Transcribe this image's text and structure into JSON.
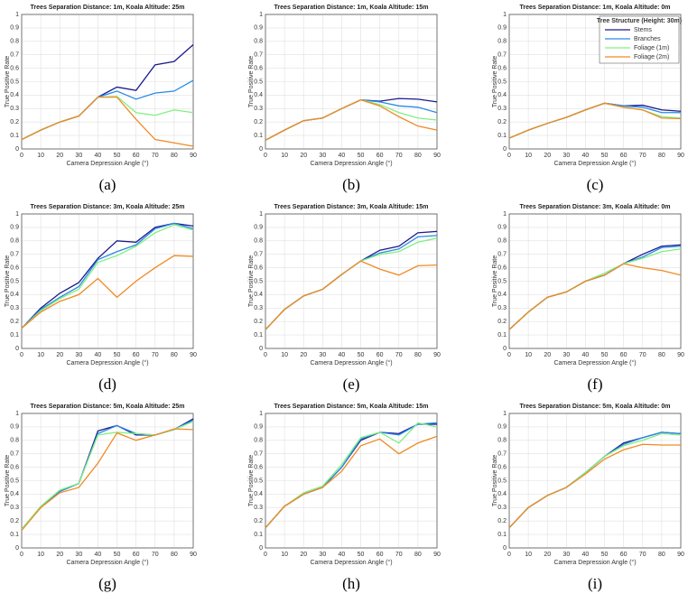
{
  "chart_data": [
    {
      "type": "line",
      "title": "Trees Separation Distance: 1m, Koala Altitude: 25m",
      "caption": "(a)",
      "xlabel": "Camera Depression Angle (°)",
      "ylabel": "True Positive Rate",
      "x": [
        0,
        10,
        20,
        30,
        40,
        50,
        60,
        70,
        80,
        90
      ],
      "xlim": [
        0,
        90
      ],
      "ylim": [
        0,
        1
      ],
      "xticks": [
        0,
        10,
        20,
        30,
        40,
        50,
        60,
        70,
        80,
        90
      ],
      "yticks": [
        0,
        0.1,
        0.2,
        0.3,
        0.4,
        0.5,
        0.6,
        0.7,
        0.8,
        0.9,
        1
      ],
      "grid": true,
      "series": [
        {
          "color": "#1a1a8c",
          "values": [
            0.07,
            0.14,
            0.2,
            0.245,
            0.385,
            0.46,
            0.435,
            0.625,
            0.65,
            0.775
          ]
        },
        {
          "color": "#2a8ae6",
          "values": [
            0.07,
            0.14,
            0.2,
            0.245,
            0.385,
            0.43,
            0.37,
            0.415,
            0.43,
            0.51
          ]
        },
        {
          "color": "#80f080",
          "values": [
            0.07,
            0.14,
            0.2,
            0.245,
            0.385,
            0.39,
            0.27,
            0.25,
            0.29,
            0.27
          ]
        },
        {
          "color": "#f08a24",
          "values": [
            0.07,
            0.14,
            0.2,
            0.245,
            0.385,
            0.385,
            0.22,
            0.07,
            0.045,
            0.02
          ]
        }
      ]
    },
    {
      "type": "line",
      "title": "Trees Separation Distance: 1m, Koala Altitude: 15m",
      "caption": "(b)",
      "xlabel": "Camera Depression Angle (°)",
      "ylabel": "True Positive Rate",
      "x": [
        0,
        10,
        20,
        30,
        40,
        50,
        60,
        70,
        80,
        90
      ],
      "xlim": [
        0,
        90
      ],
      "ylim": [
        0,
        1
      ],
      "xticks": [
        0,
        10,
        20,
        30,
        40,
        50,
        60,
        70,
        80,
        90
      ],
      "yticks": [
        0,
        0.1,
        0.2,
        0.3,
        0.4,
        0.5,
        0.6,
        0.7,
        0.8,
        0.9,
        1
      ],
      "grid": true,
      "series": [
        {
          "color": "#1a1a8c",
          "values": [
            0.065,
            0.14,
            0.21,
            0.23,
            0.3,
            0.365,
            0.355,
            0.375,
            0.37,
            0.35
          ]
        },
        {
          "color": "#2a8ae6",
          "values": [
            0.065,
            0.14,
            0.21,
            0.23,
            0.3,
            0.365,
            0.35,
            0.32,
            0.31,
            0.27
          ]
        },
        {
          "color": "#80f080",
          "values": [
            0.065,
            0.14,
            0.21,
            0.23,
            0.3,
            0.365,
            0.33,
            0.27,
            0.23,
            0.215
          ]
        },
        {
          "color": "#f08a24",
          "values": [
            0.065,
            0.14,
            0.21,
            0.23,
            0.3,
            0.365,
            0.32,
            0.24,
            0.17,
            0.14
          ]
        }
      ]
    },
    {
      "type": "line",
      "title": "Trees Separation Distance: 1m, Koala Altitude: 0m",
      "caption": "(c)",
      "xlabel": "Camera Depression Angle (°)",
      "ylabel": "True Positive Rate",
      "x": [
        0,
        10,
        20,
        30,
        40,
        50,
        60,
        70,
        80,
        90
      ],
      "xlim": [
        0,
        90
      ],
      "ylim": [
        0,
        1
      ],
      "xticks": [
        0,
        10,
        20,
        30,
        40,
        50,
        60,
        70,
        80,
        90
      ],
      "yticks": [
        0,
        0.1,
        0.2,
        0.3,
        0.4,
        0.5,
        0.6,
        0.7,
        0.8,
        0.9,
        1
      ],
      "grid": true,
      "legend": "upper right",
      "legend_title": "Tree Structure (Height: 30m)",
      "series": [
        {
          "name": "Stems",
          "color": "#1a1a8c",
          "values": [
            0.08,
            0.14,
            0.19,
            0.235,
            0.29,
            0.34,
            0.32,
            0.325,
            0.29,
            0.28
          ]
        },
        {
          "name": "Branches",
          "color": "#2a8ae6",
          "values": [
            0.08,
            0.14,
            0.19,
            0.235,
            0.29,
            0.34,
            0.32,
            0.31,
            0.27,
            0.27
          ]
        },
        {
          "name": "Foliage (1m)",
          "color": "#80f080",
          "values": [
            0.08,
            0.14,
            0.19,
            0.235,
            0.29,
            0.34,
            0.31,
            0.29,
            0.24,
            0.23
          ]
        },
        {
          "name": "Foliage (2m)",
          "color": "#f08a24",
          "values": [
            0.08,
            0.14,
            0.19,
            0.235,
            0.29,
            0.34,
            0.31,
            0.29,
            0.23,
            0.225
          ]
        }
      ]
    },
    {
      "type": "line",
      "title": "Trees Separation Distance: 3m, Koala Altitude: 25m",
      "caption": "(d)",
      "xlabel": "Camera Depression Angle (°)",
      "ylabel": "True Positive Rate",
      "x": [
        0,
        10,
        20,
        30,
        40,
        50,
        60,
        70,
        80,
        90
      ],
      "xlim": [
        0,
        90
      ],
      "ylim": [
        0,
        1
      ],
      "xticks": [
        0,
        10,
        20,
        30,
        40,
        50,
        60,
        70,
        80,
        90
      ],
      "yticks": [
        0,
        0.1,
        0.2,
        0.3,
        0.4,
        0.5,
        0.6,
        0.7,
        0.8,
        0.9,
        1
      ],
      "grid": true,
      "series": [
        {
          "color": "#1a1a8c",
          "values": [
            0.15,
            0.3,
            0.41,
            0.49,
            0.67,
            0.8,
            0.79,
            0.9,
            0.93,
            0.91
          ]
        },
        {
          "color": "#2a8ae6",
          "values": [
            0.15,
            0.29,
            0.38,
            0.46,
            0.66,
            0.72,
            0.77,
            0.89,
            0.93,
            0.89
          ]
        },
        {
          "color": "#80f080",
          "values": [
            0.15,
            0.28,
            0.37,
            0.44,
            0.64,
            0.69,
            0.76,
            0.86,
            0.92,
            0.88
          ]
        },
        {
          "color": "#f08a24",
          "values": [
            0.15,
            0.27,
            0.35,
            0.4,
            0.52,
            0.38,
            0.5,
            0.6,
            0.69,
            0.685
          ]
        }
      ]
    },
    {
      "type": "line",
      "title": "Trees Separation Distance: 3m, Koala Altitude: 15m",
      "caption": "(e)",
      "xlabel": "Camera Depression Angle (°)",
      "ylabel": "True Positive Rate",
      "x": [
        0,
        10,
        20,
        30,
        40,
        50,
        60,
        70,
        80,
        90
      ],
      "xlim": [
        0,
        90
      ],
      "ylim": [
        0,
        1
      ],
      "xticks": [
        0,
        10,
        20,
        30,
        40,
        50,
        60,
        70,
        80,
        90
      ],
      "yticks": [
        0,
        0.1,
        0.2,
        0.3,
        0.4,
        0.5,
        0.6,
        0.7,
        0.8,
        0.9,
        1
      ],
      "grid": true,
      "series": [
        {
          "color": "#1a1a8c",
          "values": [
            0.14,
            0.29,
            0.39,
            0.44,
            0.55,
            0.65,
            0.73,
            0.76,
            0.86,
            0.87
          ]
        },
        {
          "color": "#2a8ae6",
          "values": [
            0.14,
            0.29,
            0.39,
            0.44,
            0.55,
            0.65,
            0.71,
            0.74,
            0.83,
            0.84
          ]
        },
        {
          "color": "#80f080",
          "values": [
            0.14,
            0.29,
            0.39,
            0.44,
            0.55,
            0.65,
            0.7,
            0.72,
            0.79,
            0.82
          ]
        },
        {
          "color": "#f08a24",
          "values": [
            0.14,
            0.29,
            0.39,
            0.44,
            0.55,
            0.65,
            0.59,
            0.545,
            0.615,
            0.62
          ]
        }
      ]
    },
    {
      "type": "line",
      "title": "Trees Separation Distance: 3m, Koala Altitude: 0m",
      "caption": "(f)",
      "xlabel": "Camera Depression Angle (°)",
      "ylabel": "True Positive Rate",
      "x": [
        0,
        10,
        20,
        30,
        40,
        50,
        60,
        70,
        80,
        90
      ],
      "xlim": [
        0,
        90
      ],
      "ylim": [
        0,
        1
      ],
      "xticks": [
        0,
        10,
        20,
        30,
        40,
        50,
        60,
        70,
        80,
        90
      ],
      "yticks": [
        0,
        0.1,
        0.2,
        0.3,
        0.4,
        0.5,
        0.6,
        0.7,
        0.8,
        0.9,
        1
      ],
      "grid": true,
      "series": [
        {
          "color": "#1a1a8c",
          "values": [
            0.14,
            0.27,
            0.38,
            0.42,
            0.5,
            0.545,
            0.63,
            0.7,
            0.76,
            0.77
          ]
        },
        {
          "color": "#2a8ae6",
          "values": [
            0.14,
            0.27,
            0.38,
            0.42,
            0.5,
            0.545,
            0.63,
            0.68,
            0.75,
            0.76
          ]
        },
        {
          "color": "#80f080",
          "values": [
            0.14,
            0.27,
            0.38,
            0.42,
            0.5,
            0.56,
            0.63,
            0.67,
            0.72,
            0.74
          ]
        },
        {
          "color": "#f08a24",
          "values": [
            0.14,
            0.27,
            0.38,
            0.42,
            0.5,
            0.545,
            0.63,
            0.6,
            0.58,
            0.545
          ]
        }
      ]
    },
    {
      "type": "line",
      "title": "Trees Separation Distance: 5m, Koala Altitude: 25m",
      "caption": "(g)",
      "xlabel": "Camera Depression Angle (°)",
      "ylabel": "True Positive Rate",
      "x": [
        0,
        10,
        20,
        30,
        40,
        50,
        60,
        70,
        80,
        90
      ],
      "xlim": [
        0,
        90
      ],
      "ylim": [
        0,
        1
      ],
      "xticks": [
        0,
        10,
        20,
        30,
        40,
        50,
        60,
        70,
        80,
        90
      ],
      "yticks": [
        0,
        0.1,
        0.2,
        0.3,
        0.4,
        0.5,
        0.6,
        0.7,
        0.8,
        0.9,
        1
      ],
      "grid": true,
      "series": [
        {
          "color": "#1a1a8c",
          "values": [
            0.14,
            0.3,
            0.42,
            0.48,
            0.87,
            0.91,
            0.84,
            0.84,
            0.88,
            0.96
          ]
        },
        {
          "color": "#2a8ae6",
          "values": [
            0.14,
            0.3,
            0.42,
            0.48,
            0.85,
            0.91,
            0.85,
            0.84,
            0.88,
            0.95
          ]
        },
        {
          "color": "#80f080",
          "values": [
            0.14,
            0.31,
            0.43,
            0.48,
            0.84,
            0.86,
            0.85,
            0.84,
            0.88,
            0.94
          ]
        },
        {
          "color": "#f08a24",
          "values": [
            0.13,
            0.3,
            0.41,
            0.45,
            0.63,
            0.855,
            0.8,
            0.84,
            0.885,
            0.88
          ]
        }
      ]
    },
    {
      "type": "line",
      "title": "Trees Separation Distance: 5m, Koala Altitude: 15m",
      "caption": "(h)",
      "xlabel": "Camera Depression Angle (°)",
      "ylabel": "True Positive Rate",
      "x": [
        0,
        10,
        20,
        30,
        40,
        50,
        60,
        70,
        80,
        90
      ],
      "xlim": [
        0,
        90
      ],
      "ylim": [
        0,
        1
      ],
      "xticks": [
        0,
        10,
        20,
        30,
        40,
        50,
        60,
        70,
        80,
        90
      ],
      "yticks": [
        0,
        0.1,
        0.2,
        0.3,
        0.4,
        0.5,
        0.6,
        0.7,
        0.8,
        0.9,
        1
      ],
      "grid": true,
      "series": [
        {
          "color": "#1a1a8c",
          "values": [
            0.15,
            0.31,
            0.4,
            0.45,
            0.6,
            0.8,
            0.86,
            0.85,
            0.92,
            0.92
          ]
        },
        {
          "color": "#2a8ae6",
          "values": [
            0.15,
            0.31,
            0.4,
            0.45,
            0.6,
            0.81,
            0.86,
            0.84,
            0.92,
            0.93
          ]
        },
        {
          "color": "#80f080",
          "values": [
            0.15,
            0.31,
            0.41,
            0.46,
            0.62,
            0.82,
            0.86,
            0.78,
            0.93,
            0.9
          ]
        },
        {
          "color": "#f08a24",
          "values": [
            0.15,
            0.31,
            0.4,
            0.45,
            0.57,
            0.76,
            0.81,
            0.7,
            0.78,
            0.83
          ]
        }
      ]
    },
    {
      "type": "line",
      "title": "Trees Separation Distance: 5m, Koala Altitude: 0m",
      "caption": "(i)",
      "xlabel": "Camera Depression Angle (°)",
      "ylabel": "True Positive Rate",
      "x": [
        0,
        10,
        20,
        30,
        40,
        50,
        60,
        70,
        80,
        90
      ],
      "xlim": [
        0,
        90
      ],
      "ylim": [
        0,
        1
      ],
      "xticks": [
        0,
        10,
        20,
        30,
        40,
        50,
        60,
        70,
        80,
        90
      ],
      "yticks": [
        0,
        0.1,
        0.2,
        0.3,
        0.4,
        0.5,
        0.6,
        0.7,
        0.8,
        0.9,
        1
      ],
      "grid": true,
      "series": [
        {
          "color": "#1a1a8c",
          "values": [
            0.15,
            0.3,
            0.39,
            0.45,
            0.56,
            0.68,
            0.78,
            0.82,
            0.86,
            0.85
          ]
        },
        {
          "color": "#2a8ae6",
          "values": [
            0.15,
            0.3,
            0.39,
            0.45,
            0.56,
            0.68,
            0.77,
            0.82,
            0.86,
            0.85
          ]
        },
        {
          "color": "#80f080",
          "values": [
            0.15,
            0.3,
            0.39,
            0.45,
            0.56,
            0.68,
            0.76,
            0.8,
            0.85,
            0.84
          ]
        },
        {
          "color": "#f08a24",
          "values": [
            0.15,
            0.3,
            0.39,
            0.45,
            0.55,
            0.66,
            0.73,
            0.77,
            0.765,
            0.765
          ]
        }
      ]
    }
  ]
}
